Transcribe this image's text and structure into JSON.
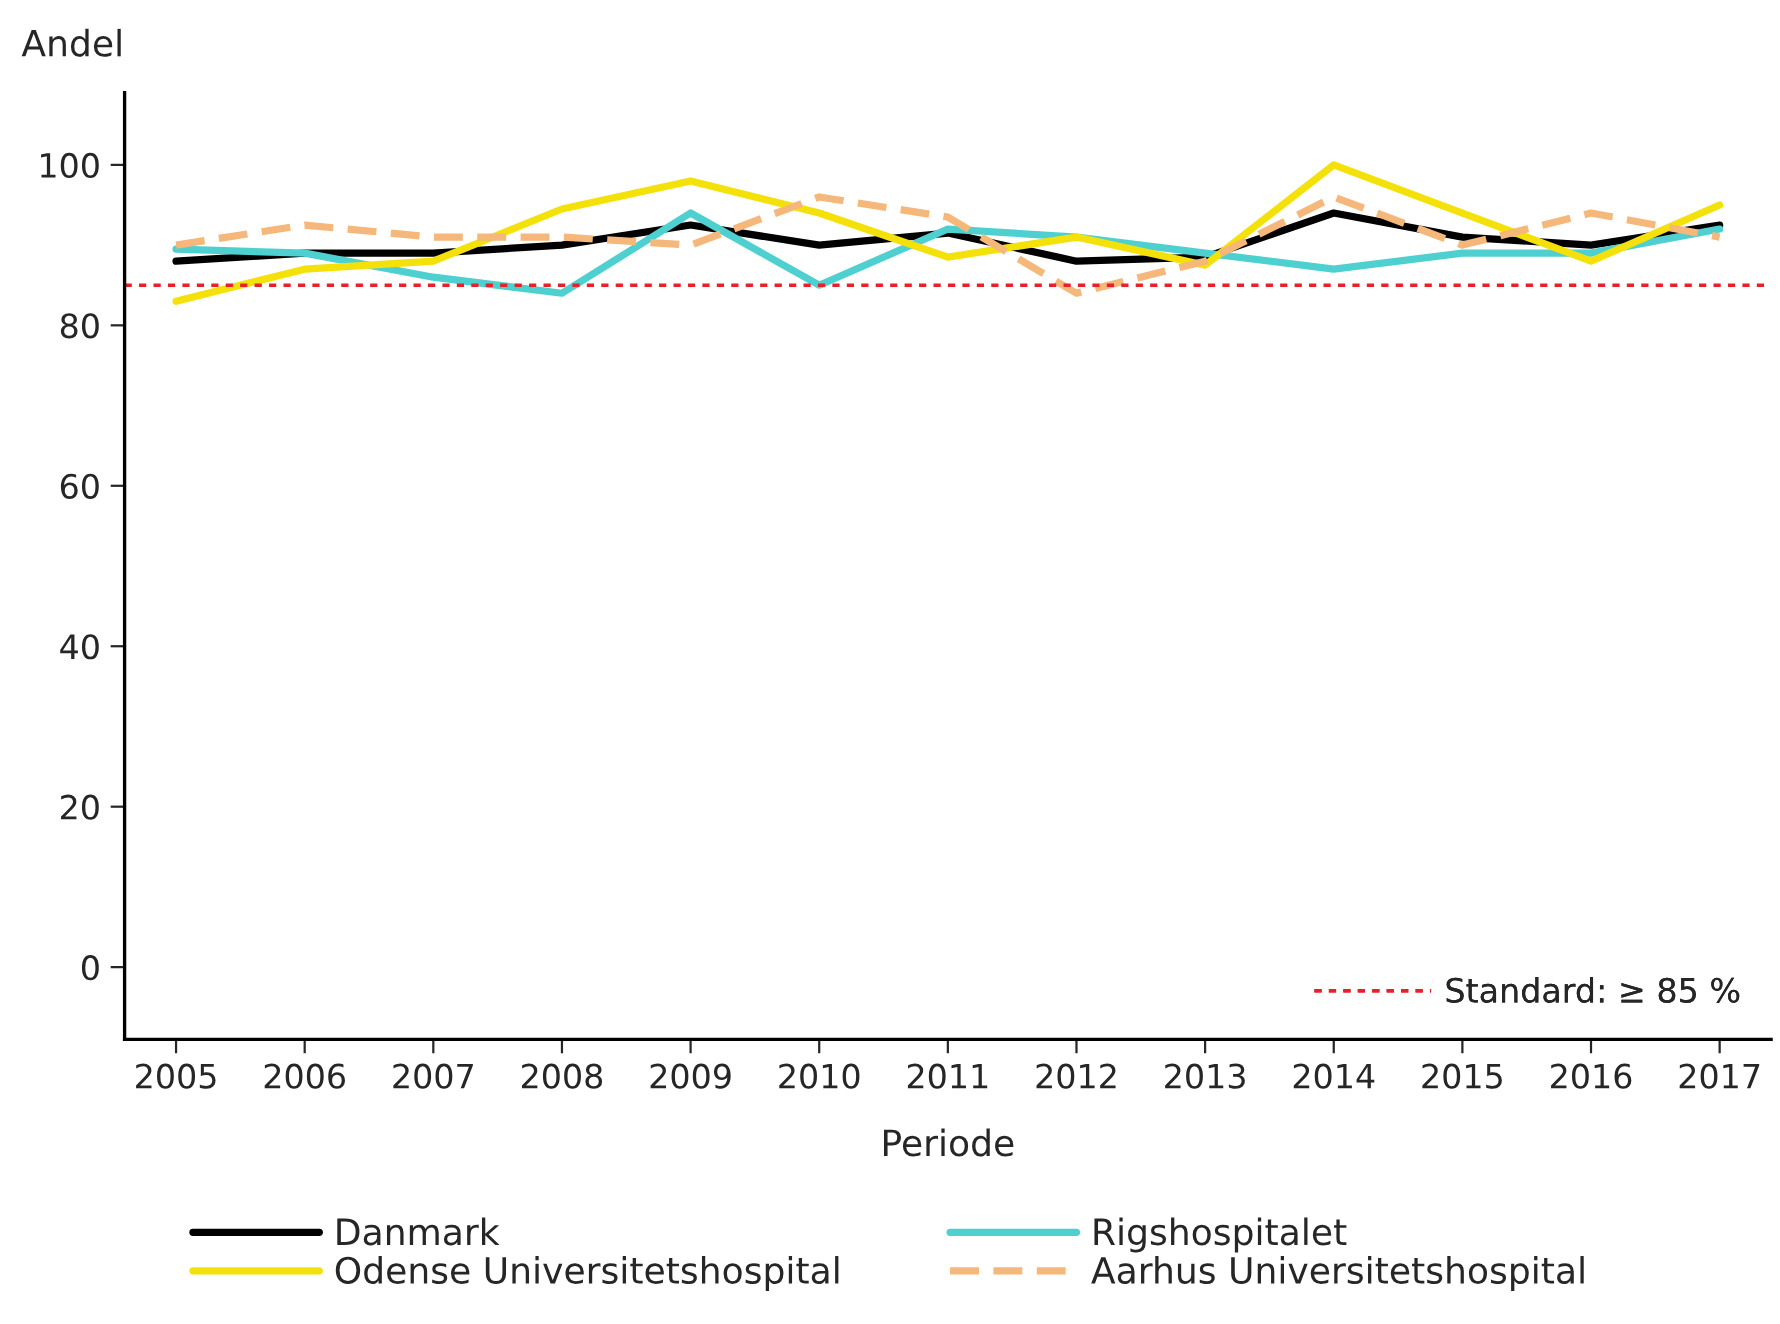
{
  "chart_data": {
    "type": "line",
    "xlabel": "Periode",
    "ylabel": "Andel",
    "x": [
      2005,
      2006,
      2007,
      2008,
      2009,
      2010,
      2011,
      2012,
      2013,
      2014,
      2015,
      2016,
      2017
    ],
    "xlim": [
      2004.6,
      2017.4
    ],
    "xticks": [
      2005,
      2006,
      2007,
      2008,
      2009,
      2010,
      2011,
      2012,
      2013,
      2014,
      2015,
      2016,
      2017
    ],
    "ylim": [
      -9,
      109
    ],
    "yticks": [
      0,
      20,
      40,
      60,
      80,
      100
    ],
    "grid": false,
    "legend": "bottom",
    "marker": "none",
    "series": [
      {
        "name": "Danmark",
        "color": "#000000",
        "line_style": "solid",
        "values": [
          88,
          89,
          89,
          90,
          92.5,
          90,
          91.5,
          88,
          88.5,
          94,
          91,
          90,
          92.5
        ]
      },
      {
        "name": "Rigshospitalet",
        "color": "#4fd0d0",
        "line_style": "solid",
        "values": [
          89.5,
          89,
          86,
          84,
          94,
          85,
          92,
          91,
          89,
          87,
          89,
          89,
          92
        ]
      },
      {
        "name": "Odense Universitetshospital",
        "color": "#f5e10a",
        "line_style": "solid",
        "values": [
          83,
          87,
          88,
          94.5,
          98,
          94,
          88.5,
          91,
          87.5,
          100,
          94,
          88,
          95
        ]
      },
      {
        "name": "Aarhus Universitetshospital",
        "color": "#f5b77a",
        "line_style": "dashed",
        "values": [
          90,
          92.5,
          91,
          91,
          90,
          96,
          93.5,
          84,
          88,
          96,
          90,
          94,
          91
        ]
      }
    ],
    "ref_lines": [
      {
        "axis": "y",
        "value": 85,
        "label": "Standard: ≥ 85 %",
        "color": "#e8202a",
        "line_style": "dotted"
      }
    ]
  }
}
